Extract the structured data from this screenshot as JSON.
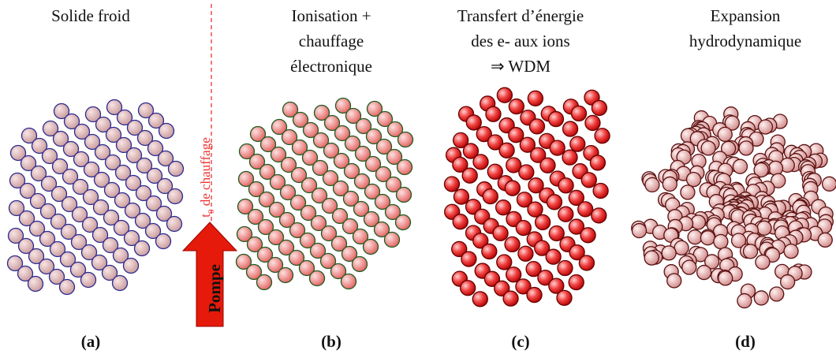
{
  "panels": [
    {
      "title": [
        "Solide froid"
      ],
      "label": "(a)"
    },
    {
      "title": [
        "Ionisation +",
        "chauffage",
        "électronique"
      ],
      "label": "(b)"
    },
    {
      "title": [
        "Transfert d’énergie",
        "des e- aux ions",
        "⇒    WDM"
      ],
      "label": "(c)"
    },
    {
      "title": [
        "Expansion",
        "hydrodynamique"
      ],
      "label": "(d)"
    }
  ],
  "pump": {
    "arrow": "Pompe",
    "time": {
      "main": "t",
      "sub": "0",
      "rest": " de chauffage"
    }
  }
}
